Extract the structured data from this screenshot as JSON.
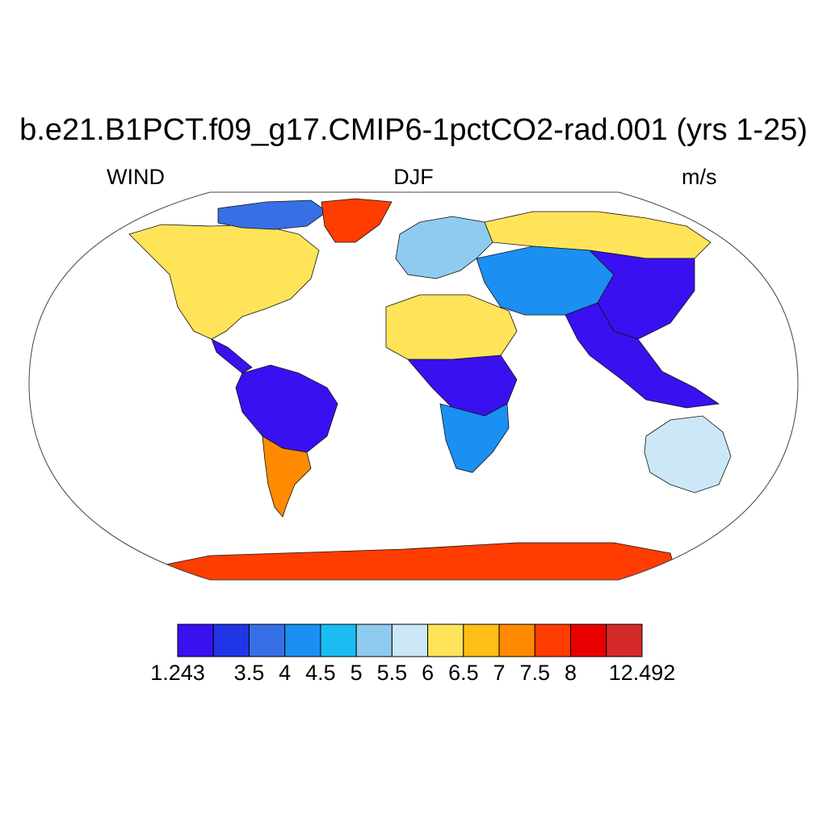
{
  "title": "b.e21.B1PCT.f09_g17.CMIP6-1pctCO2-rad.001 (yrs 1-25)",
  "left_string": "WIND",
  "center_string": "DJF",
  "right_string": "m/s",
  "colorbar": {
    "colors": [
      "#3a10f0",
      "#1f35e6",
      "#3670e4",
      "#1b8ff2",
      "#1bbcf2",
      "#8ecbee",
      "#cce8f8",
      "#ffe45a",
      "#ffbe15",
      "#ff8a00",
      "#ff3d00",
      "#e80000",
      "#d42a2a"
    ],
    "labels": [
      "1.243",
      "3.5",
      "4",
      "4.5",
      "5",
      "5.5",
      "6",
      "6.5",
      "7",
      "7.5",
      "8",
      "12.492"
    ]
  },
  "chart_data": {
    "type": "heatmap",
    "projection": "robinson",
    "variable": "WIND",
    "season": "DJF",
    "units": "m/s",
    "data_min": 1.243,
    "data_max": 12.492,
    "levels": [
      1.243,
      3.5,
      4,
      4.5,
      5,
      5.5,
      6,
      6.5,
      7,
      7.5,
      8,
      12.492
    ],
    "regions": [
      {
        "name": "greenland",
        "value": 9.5
      },
      {
        "name": "north-america",
        "value": 6.8
      },
      {
        "name": "northern-canada",
        "value": 4.2
      },
      {
        "name": "central-america",
        "value": 3.0
      },
      {
        "name": "amazon",
        "value": 1.5
      },
      {
        "name": "patagonia",
        "value": 7.6
      },
      {
        "name": "sahara",
        "value": 6.8
      },
      {
        "name": "central-africa",
        "value": 1.5
      },
      {
        "name": "southern-africa",
        "value": 4.6
      },
      {
        "name": "europe",
        "value": 5.6
      },
      {
        "name": "siberia",
        "value": 6.6
      },
      {
        "name": "central-asia",
        "value": 4.8
      },
      {
        "name": "east-asia",
        "value": 3.2
      },
      {
        "name": "southeast-asia",
        "value": 1.8
      },
      {
        "name": "australia",
        "value": 6.3
      },
      {
        "name": "antarctica",
        "value": 8.6
      }
    ]
  }
}
